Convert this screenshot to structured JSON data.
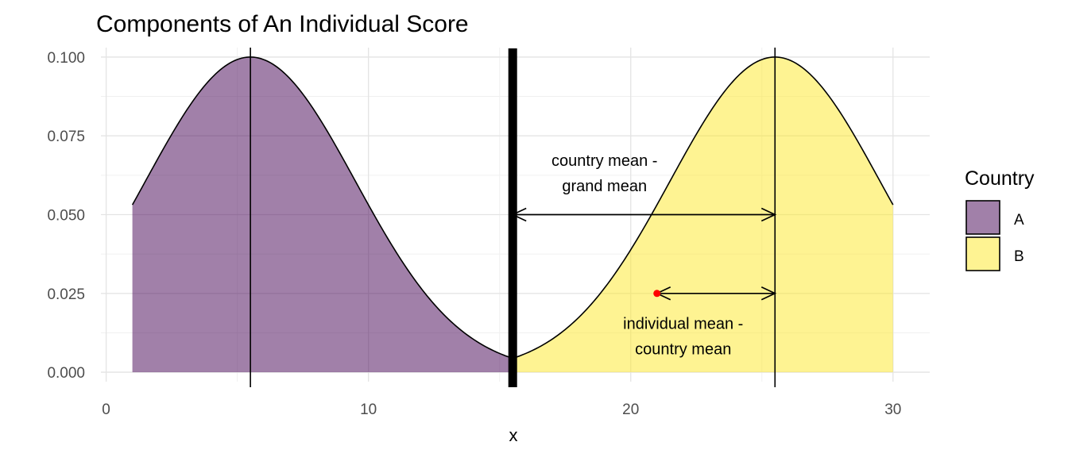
{
  "chart_data": {
    "type": "area",
    "title": "Components of An Individual Score",
    "xlabel": "x",
    "ylabel": "",
    "xlim": [
      -0.2,
      31.4
    ],
    "ylim": [
      -0.003,
      0.103
    ],
    "x_ticks": [
      0,
      10,
      20,
      30
    ],
    "x_tick_labels": [
      "0",
      "10",
      "20",
      "30"
    ],
    "y_ticks": [
      0,
      0.025,
      0.05,
      0.075,
      0.1
    ],
    "y_tick_labels": [
      "0.000",
      "0.025",
      "0.050",
      "0.075",
      "0.100"
    ],
    "grid": true,
    "legend": {
      "title": "Country",
      "position": "right",
      "entries": [
        {
          "label": "A",
          "color": "#440154"
        },
        {
          "label": "B",
          "color": "#FDE725"
        }
      ]
    },
    "series": [
      {
        "name": "A",
        "color": "#440154",
        "opacity": 0.5,
        "x_range": [
          1,
          15.5
        ],
        "mean": 5.5,
        "sd": 4,
        "peak": 0.1
      },
      {
        "name": "B",
        "color": "#FDE725",
        "opacity": 0.5,
        "x_range": [
          15.5,
          30
        ],
        "mean": 25.5,
        "sd": 4,
        "peak": 0.1
      }
    ],
    "reference_lines": [
      {
        "x": 15.5,
        "label": "grand mean",
        "style": "thick"
      },
      {
        "x": 5.5,
        "label": "country A mean",
        "style": "thin"
      },
      {
        "x": 25.5,
        "label": "country B mean",
        "style": "thin"
      }
    ],
    "point": {
      "x": 21,
      "y": 0.025,
      "color": "#FF0000"
    },
    "arrows": [
      {
        "x_from": 15.5,
        "x_to": 25.5,
        "y": 0.05
      },
      {
        "x_from": 21,
        "x_to": 25.5,
        "y": 0.025
      }
    ],
    "annotations": [
      {
        "lines": [
          "country mean -",
          "grand mean"
        ],
        "x": 19,
        "y": 0.0655
      },
      {
        "lines": [
          "individual mean -",
          "country mean"
        ],
        "x": 22,
        "y": 0.0137
      }
    ]
  }
}
